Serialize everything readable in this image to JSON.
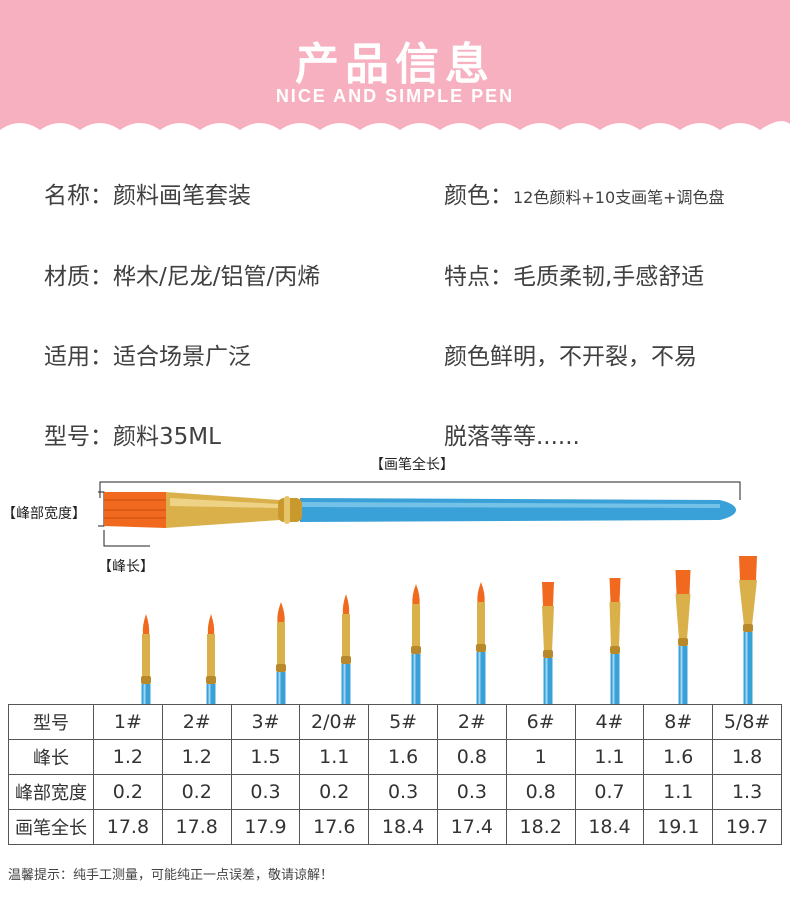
{
  "banner": {
    "title": "产品信息",
    "subtitle": "NICE AND SIMPLE PEN",
    "color": "#f7b0bf"
  },
  "info": {
    "name": {
      "label": "名称：",
      "value": "颜料画笔套装"
    },
    "color": {
      "label": "颜色：",
      "value": "12色颜料+10支画笔+调色盘"
    },
    "material": {
      "label": "材质：",
      "value": "桦木/尼龙/铝管/丙烯"
    },
    "feature": {
      "label": "特点：",
      "value": "毛质柔韧,手感舒适"
    },
    "usage": {
      "label": "适用：",
      "value": "适合场景广泛"
    },
    "feature_line2": "颜色鲜明，不开裂，不易",
    "model": {
      "label": "型号：",
      "value": "颜料35ML"
    },
    "feature_line3": "脱落等等......"
  },
  "diagram": {
    "total_length": "【画笔全长】",
    "tip_width": "【峰部宽度】",
    "tip_length": "【峰长】",
    "handle_color": "#3aa0d8",
    "ferrule_color": "#d9b04a",
    "bristle_color": "#f0691e"
  },
  "table": {
    "rows": [
      [
        "型号",
        "1#",
        "2#",
        "3#",
        "2/0#",
        "5#",
        "2#",
        "6#",
        "4#",
        "8#",
        "5/8#"
      ],
      [
        "峰长",
        "1.2",
        "1.2",
        "1.5",
        "1.1",
        "1.6",
        "0.8",
        "1",
        "1.1",
        "1.6",
        "1.8"
      ],
      [
        "峰部宽度",
        "0.2",
        "0.2",
        "0.3",
        "0.2",
        "0.3",
        "0.3",
        "0.8",
        "0.7",
        "1.1",
        "1.3"
      ],
      [
        "画笔全长",
        "17.8",
        "17.8",
        "17.9",
        "17.6",
        "18.4",
        "17.4",
        "18.2",
        "18.4",
        "19.1",
        "19.7"
      ]
    ]
  },
  "footnote": "温馨提示：纯手工测量，可能纯正一点误差，敬请谅解！"
}
